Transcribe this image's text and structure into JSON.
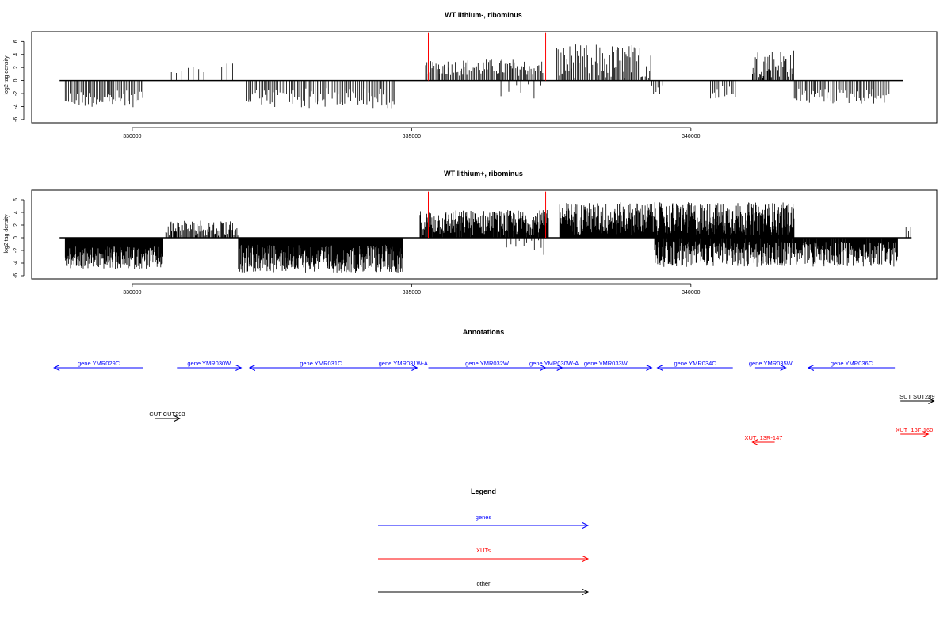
{
  "chart_data": [
    {
      "type": "bar",
      "title": "WT lithium-, ribominus",
      "ylabel": "log2 tag density",
      "xlim": [
        328200,
        344400
      ],
      "ylim": [
        -6.5,
        7.5
      ],
      "xticks": [
        330000,
        335000,
        340000
      ],
      "xtick_labels": [
        "330000",
        "335000",
        "340000"
      ],
      "yticks": [
        -6,
        -4,
        -2,
        0,
        2,
        4,
        6
      ],
      "ytick_labels": [
        "-6",
        "-4",
        "-2",
        "0",
        "2",
        "4",
        "6"
      ],
      "baseline_range": [
        328700,
        343800
      ],
      "series": [
        {
          "color": "#000000",
          "segments": [
            {
              "from": 328800,
              "to": 330200,
              "sign": -1,
              "mean": 2.8,
              "amp": 1.3,
              "step": 26
            },
            {
              "from": 330700,
              "to": 331300,
              "sign": 1,
              "mean": 1.6,
              "amp": 0.8,
              "step": 70
            },
            {
              "from": 331600,
              "to": 331850,
              "sign": 1,
              "mean": 2.4,
              "amp": 0.6,
              "step": 90
            },
            {
              "from": 332050,
              "to": 334700,
              "sign": -1,
              "mean": 2.7,
              "amp": 1.6,
              "step": 26
            },
            {
              "from": 335250,
              "to": 335500,
              "sign": 1,
              "mean": 2.0,
              "amp": 1.0,
              "step": 24
            },
            {
              "from": 335500,
              "to": 337350,
              "sign": 1,
              "mean": 2.0,
              "amp": 1.3,
              "step": 22
            },
            {
              "from": 336600,
              "to": 337350,
              "sign": -1,
              "mean": 1.2,
              "amp": 2.0,
              "step": 110
            },
            {
              "from": 337600,
              "to": 339300,
              "sign": 1,
              "mean": 2.8,
              "amp": 2.8,
              "step": 20
            },
            {
              "from": 339300,
              "to": 339500,
              "sign": -1,
              "mean": 1.8,
              "amp": 1.6,
              "step": 40
            },
            {
              "from": 340350,
              "to": 340800,
              "sign": -1,
              "mean": 1.8,
              "amp": 1.1,
              "step": 40
            },
            {
              "from": 341100,
              "to": 341850,
              "sign": 1,
              "mean": 2.6,
              "amp": 2.2,
              "step": 18
            },
            {
              "from": 341850,
              "to": 343550,
              "sign": -1,
              "mean": 2.4,
              "amp": 1.2,
              "step": 28
            }
          ]
        },
        {
          "color": "#ff0000",
          "bars": [
            {
              "x": 335300,
              "y": 7.3
            },
            {
              "x": 337400,
              "y": 7.3
            }
          ]
        }
      ]
    },
    {
      "type": "bar",
      "title": "WT lithium+, ribominus",
      "ylabel": "log2 tag density",
      "xlim": [
        328200,
        344400
      ],
      "ylim": [
        -6.5,
        7.5
      ],
      "xticks": [
        330000,
        335000,
        340000
      ],
      "xtick_labels": [
        "330000",
        "335000",
        "340000"
      ],
      "yticks": [
        -6,
        -4,
        -2,
        0,
        2,
        4,
        6
      ],
      "ytick_labels": [
        "-6",
        "-4",
        "-2",
        "0",
        "2",
        "4",
        "6"
      ],
      "baseline_range": [
        328700,
        343950
      ],
      "series": [
        {
          "color": "#000000",
          "segments": [
            {
              "from": 328800,
              "to": 330550,
              "sign": -1,
              "mean": 3.2,
              "amp": 1.8,
              "step": 8
            },
            {
              "from": 330600,
              "to": 331900,
              "sign": 1,
              "mean": 1.6,
              "amp": 1.3,
              "step": 16
            },
            {
              "from": 331900,
              "to": 334850,
              "sign": -1,
              "mean": 3.3,
              "amp": 2.2,
              "step": 7
            },
            {
              "from": 335150,
              "to": 337450,
              "sign": 1,
              "mean": 2.4,
              "amp": 2.0,
              "step": 9
            },
            {
              "from": 336700,
              "to": 337400,
              "sign": -1,
              "mean": 1.0,
              "amp": 1.8,
              "step": 70
            },
            {
              "from": 337650,
              "to": 341850,
              "sign": 1,
              "mean": 3.0,
              "amp": 2.6,
              "step": 7
            },
            {
              "from": 339350,
              "to": 343700,
              "sign": -1,
              "mean": 2.6,
              "amp": 2.0,
              "step": 9
            },
            {
              "from": 343850,
              "to": 343950,
              "sign": 1,
              "mean": 1.5,
              "amp": 0.6,
              "step": 40
            }
          ]
        },
        {
          "color": "#ff0000",
          "bars": [
            {
              "x": 335300,
              "y": 7.3
            },
            {
              "x": 337400,
              "y": 7.3
            }
          ]
        }
      ]
    }
  ],
  "annotations": {
    "title": "Annotations",
    "items": [
      {
        "label": "gene YMR029C",
        "from": 330200,
        "to": 328600,
        "row": 0,
        "color": "#0000ff"
      },
      {
        "label": "gene YMR030W",
        "from": 330800,
        "to": 331950,
        "row": 0,
        "color": "#0000ff"
      },
      {
        "label": "gene YMR031C",
        "from": 334650,
        "to": 332100,
        "row": 0,
        "color": "#0000ff"
      },
      {
        "label": "gene YMR031W-A",
        "from": 334600,
        "to": 335100,
        "row": 0,
        "color": "#0000ff"
      },
      {
        "label": "gene YMR032W",
        "from": 335300,
        "to": 337400,
        "row": 0,
        "color": "#0000ff"
      },
      {
        "label": "gene YMR030W-A",
        "from": 337400,
        "to": 337700,
        "row": 0,
        "color": "#0000ff"
      },
      {
        "label": "gene YMR033W",
        "from": 337650,
        "to": 339300,
        "row": 0,
        "color": "#0000ff"
      },
      {
        "label": "gene YMR034C",
        "from": 340750,
        "to": 339400,
        "row": 0,
        "color": "#0000ff"
      },
      {
        "label": "gene YMR035W",
        "from": 341150,
        "to": 341700,
        "row": 0,
        "color": "#0000ff"
      },
      {
        "label": "gene YMR036C",
        "from": 343650,
        "to": 342100,
        "row": 0,
        "color": "#0000ff"
      },
      {
        "label": "SUT SUT289",
        "from": 343750,
        "to": 344350,
        "row": 1,
        "color": "#000000"
      },
      {
        "label": "CUT CUT293",
        "from": 330400,
        "to": 330850,
        "row": 2,
        "color": "#000000"
      },
      {
        "label": "XUT_13F-160",
        "from": 343750,
        "to": 344250,
        "row": 3,
        "color": "#ff0000"
      },
      {
        "label": "XUT_13R-147",
        "from": 341500,
        "to": 341100,
        "row": 4,
        "color": "#ff0000"
      }
    ]
  },
  "legend": {
    "title": "Legend",
    "entries": [
      {
        "label": "genes",
        "color": "#0000ff"
      },
      {
        "label": "XUTs",
        "color": "#ff0000"
      },
      {
        "label": "other",
        "color": "#000000"
      }
    ]
  }
}
